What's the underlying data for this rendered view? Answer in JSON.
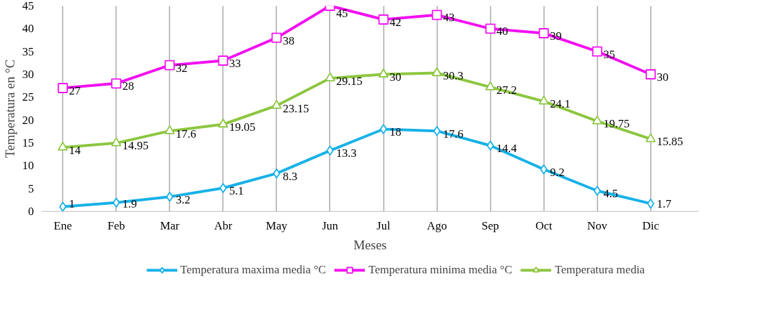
{
  "chart_data": {
    "type": "line",
    "xlabel": "Meses",
    "ylabel": "Temperatura en °C",
    "categories": [
      "Ene",
      "Feb",
      "Mar",
      "Abr",
      "May",
      "Jun",
      "Jul",
      "Ago",
      "Sep",
      "Oct",
      "Nov",
      "Dic"
    ],
    "series": [
      {
        "name": "Temperatura maxima media °C",
        "color": "#17b1e8",
        "marker": "diamond",
        "values": [
          1,
          1.9,
          3.2,
          5.1,
          8.3,
          13.3,
          18,
          17.6,
          14.4,
          9.2,
          4.5,
          1.7
        ]
      },
      {
        "name": "Temperatura minima media °C",
        "color": "#f20ff2",
        "marker": "square",
        "values": [
          27,
          28,
          32,
          33,
          38,
          45,
          42,
          43,
          40,
          39,
          35,
          30
        ]
      },
      {
        "name": "Temperatura media",
        "color": "#8cc63f",
        "marker": "triangle",
        "values": [
          14,
          14.95,
          17.6,
          19.05,
          23.15,
          29.15,
          30,
          30.3,
          27.2,
          24.1,
          19.75,
          15.85
        ]
      }
    ],
    "ylim": [
      0,
      45
    ],
    "yticks": [
      0,
      5,
      10,
      15,
      20,
      25,
      30,
      35,
      40,
      45
    ],
    "grid": "x",
    "legend": "bottom",
    "data_labels": true,
    "line_style": "solid"
  }
}
